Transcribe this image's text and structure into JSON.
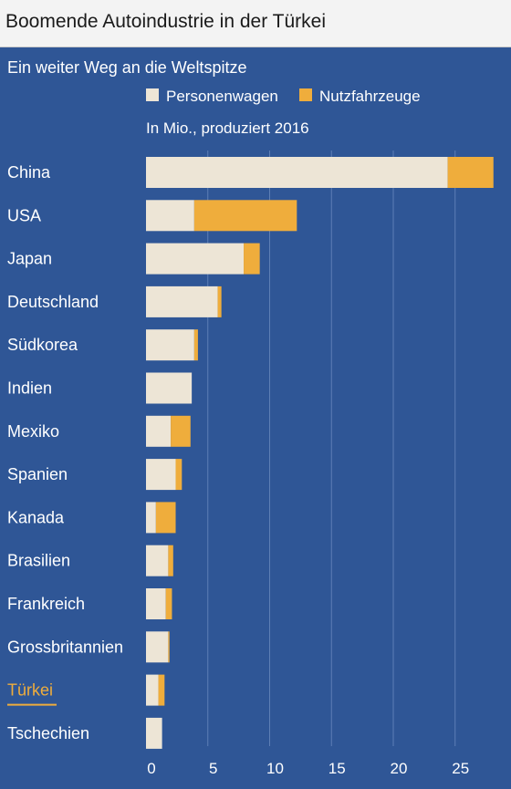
{
  "header": {
    "title": "Boomende Autoindustrie in der Türkei"
  },
  "chart_data": {
    "type": "bar",
    "orientation": "horizontal",
    "stacked": true,
    "title": "Boomende Autoindustrie in der Türkei",
    "subtitle": "Ein weiter Weg an die Weltspitze",
    "unit_note": "In Mio., produziert 2016",
    "categories": [
      "China",
      "USA",
      "Japan",
      "Deutschland",
      "Südkorea",
      "Indien",
      "Mexiko",
      "Spanien",
      "Kanada",
      "Brasilien",
      "Frankreich",
      "Grossbritannien",
      "Türkei",
      "Tschechien"
    ],
    "highlight_category": "Türkei",
    "series": [
      {
        "name": "Personenwagen",
        "color": "#ede5d6",
        "values": [
          24.4,
          3.9,
          7.9,
          5.8,
          3.9,
          3.7,
          2.0,
          2.4,
          0.8,
          1.8,
          1.6,
          1.8,
          1.0,
          1.3
        ]
      },
      {
        "name": "Nutzfahrzeuge",
        "color": "#efad3c",
        "values": [
          3.7,
          8.3,
          1.3,
          0.3,
          0.3,
          0.0,
          1.6,
          0.5,
          1.6,
          0.4,
          0.5,
          0.1,
          0.5,
          0.0
        ]
      }
    ],
    "x_ticks": [
      0,
      5,
      10,
      15,
      20,
      25
    ],
    "xlim": [
      0,
      29
    ],
    "grid": true,
    "legend_position": "top",
    "colors": {
      "background": "#2f5696",
      "grid": "#5e7fb5",
      "highlight": "#efad3c",
      "text": "#ffffff"
    }
  }
}
